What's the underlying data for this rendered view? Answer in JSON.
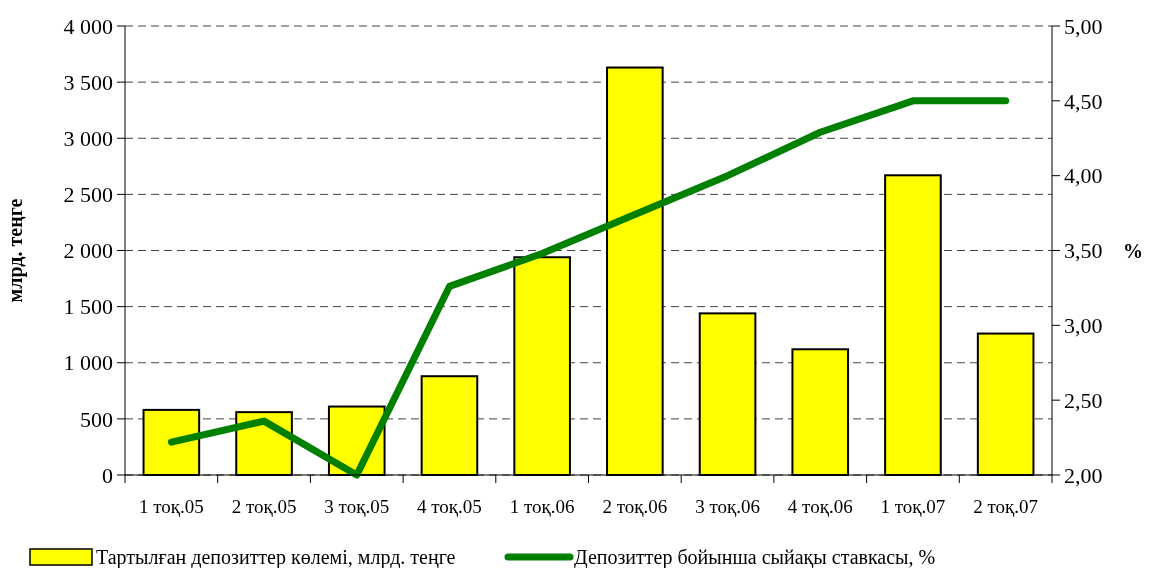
{
  "chart_data": {
    "type": "bar",
    "categories": [
      "1 тоқ.05",
      "2 тоқ.05",
      "3 тоқ.05",
      "4 тоқ.05",
      "1 тоқ.06",
      "2 тоқ.06",
      "3 тоқ.06",
      "4 тоқ.06",
      "1 тоқ.07",
      "2 тоқ.07"
    ],
    "series": [
      {
        "name": "Тартылған депозиттер көлемі, млрд. теңге",
        "color": "#ffff00",
        "values": [
          580,
          560,
          610,
          880,
          1940,
          3630,
          1440,
          1120,
          2670,
          1260
        ]
      },
      {
        "name": "Депозиттер бойынша сыйақы ставкасы, %",
        "type": "line",
        "axis": "y2",
        "color": "#008000",
        "values": [
          2.22,
          2.36,
          2.0,
          3.26,
          3.48,
          3.74,
          4.0,
          4.29,
          4.5,
          4.5
        ]
      }
    ],
    "ylabel": "млрд. теңге",
    "y2label": "%",
    "ylim": [
      0,
      4000
    ],
    "yticks": [
      {
        "value": 0,
        "label": "0"
      },
      {
        "value": 500,
        "label": "500"
      },
      {
        "value": 1000,
        "label": "1 000"
      },
      {
        "value": 1500,
        "label": "1 500"
      },
      {
        "value": 2000,
        "label": "2 000"
      },
      {
        "value": 2500,
        "label": "2 500"
      },
      {
        "value": 3000,
        "label": "3 000"
      },
      {
        "value": 3500,
        "label": "3 500"
      },
      {
        "value": 4000,
        "label": "4 000"
      }
    ],
    "y2lim": [
      2,
      5
    ],
    "y2ticks": [
      {
        "value": 2,
        "label": "2,00"
      },
      {
        "value": 2.5,
        "label": "2,50"
      },
      {
        "value": 3,
        "label": "3,00"
      },
      {
        "value": 3.5,
        "label": "3,50"
      },
      {
        "value": 4,
        "label": "4,00"
      },
      {
        "value": 4.5,
        "label": "4,50"
      },
      {
        "value": 5,
        "label": "5,00"
      }
    ],
    "grid": "y",
    "legend": "bottom",
    "line_style": "solid",
    "marker": "none"
  }
}
